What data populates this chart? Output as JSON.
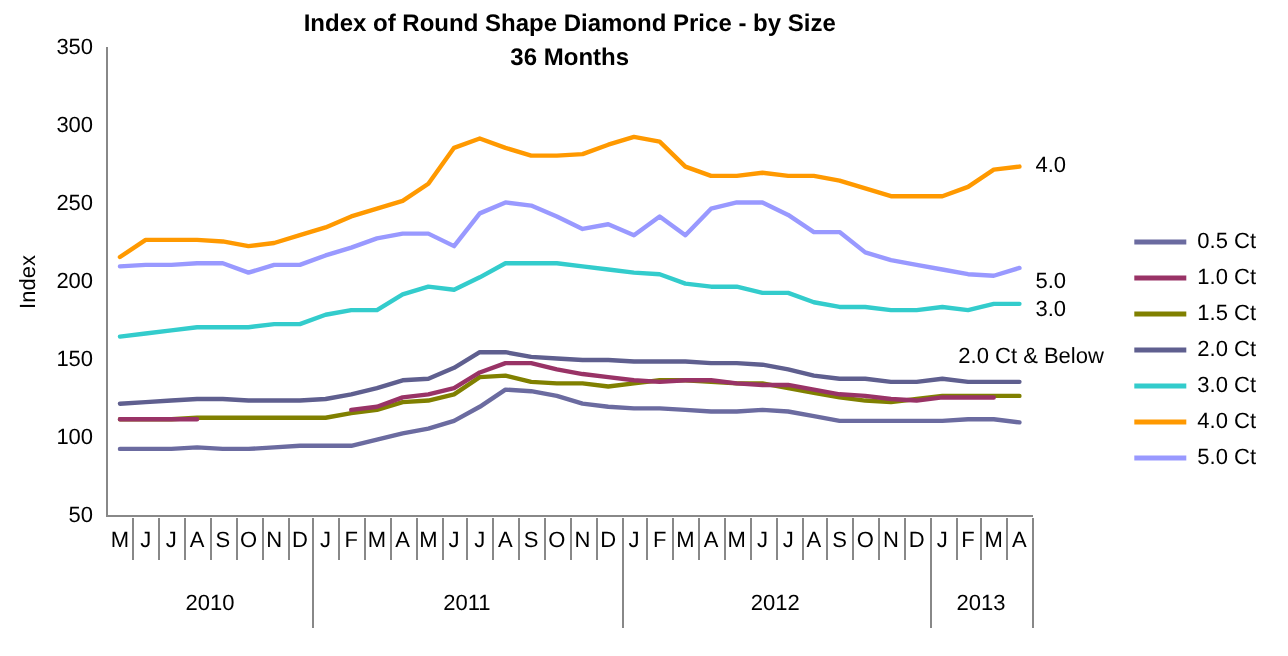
{
  "chart_data": {
    "type": "line",
    "title": "Index of Round Shape Diamond Price - by Size",
    "subtitle": "36 Months",
    "ylabel": "Index",
    "categories": [
      "M",
      "J",
      "J",
      "A",
      "S",
      "O",
      "N",
      "D",
      "J",
      "F",
      "M",
      "A",
      "M",
      "J",
      "J",
      "A",
      "S",
      "O",
      "N",
      "D",
      "J",
      "F",
      "M",
      "A",
      "M",
      "J",
      "J",
      "A",
      "S",
      "O",
      "N",
      "D",
      "J",
      "F",
      "M",
      "A"
    ],
    "ylim": [
      50,
      350
    ],
    "yticks": [
      50,
      100,
      150,
      200,
      250,
      300,
      350
    ],
    "grid": false,
    "legend": "right",
    "marker": "none",
    "line_style": "solid",
    "series": [
      {
        "name": "0.5 Ct",
        "color": "#6b6ba0",
        "values": [
          93,
          93,
          93,
          94,
          93,
          93,
          94,
          95,
          95,
          95,
          99,
          103,
          106,
          111,
          120,
          131,
          130,
          127,
          122,
          120,
          119,
          119,
          118,
          117,
          117,
          118,
          117,
          114,
          111,
          111,
          111,
          111,
          111,
          112,
          112,
          110
        ]
      },
      {
        "name": "1.0 Ct",
        "color": "#993366",
        "values": [
          112,
          112,
          112,
          112,
          null,
          null,
          null,
          null,
          null,
          118,
          120,
          126,
          128,
          132,
          142,
          148,
          148,
          144,
          141,
          139,
          137,
          136,
          137,
          137,
          135,
          134,
          134,
          131,
          128,
          127,
          125,
          124,
          126,
          126,
          126,
          null
        ]
      },
      {
        "name": "1.5 Ct",
        "color": "#808000",
        "values": [
          112,
          112,
          112,
          113,
          113,
          113,
          113,
          113,
          113,
          116,
          118,
          123,
          124,
          128,
          139,
          140,
          136,
          135,
          135,
          133,
          135,
          137,
          137,
          136,
          135,
          135,
          132,
          129,
          126,
          124,
          123,
          125,
          127,
          127,
          127,
          127
        ]
      },
      {
        "name": "2.0 Ct",
        "color": "#5f5f8f",
        "values": [
          122,
          123,
          124,
          125,
          125,
          124,
          124,
          124,
          125,
          128,
          132,
          137,
          138,
          145,
          155,
          155,
          152,
          151,
          150,
          150,
          149,
          149,
          149,
          148,
          148,
          147,
          144,
          140,
          138,
          138,
          136,
          136,
          138,
          136,
          136,
          136
        ]
      },
      {
        "name": "3.0 Ct",
        "color": "#33cccc",
        "values": [
          165,
          167,
          169,
          171,
          171,
          171,
          173,
          173,
          179,
          182,
          182,
          192,
          197,
          195,
          203,
          212,
          212,
          212,
          210,
          208,
          206,
          205,
          199,
          197,
          197,
          193,
          193,
          187,
          184,
          184,
          182,
          182,
          184,
          182,
          186,
          186
        ]
      },
      {
        "name": "4.0 Ct",
        "color": "#ff9900",
        "values": [
          216,
          227,
          227,
          227,
          226,
          223,
          225,
          230,
          235,
          242,
          247,
          252,
          263,
          286,
          292,
          286,
          281,
          281,
          282,
          288,
          293,
          290,
          274,
          268,
          268,
          270,
          268,
          268,
          265,
          260,
          255,
          255,
          255,
          261,
          272,
          274
        ]
      },
      {
        "name": "5.0 Ct",
        "color": "#9999ff",
        "values": [
          210,
          211,
          211,
          212,
          212,
          206,
          211,
          211,
          217,
          222,
          228,
          231,
          231,
          223,
          244,
          251,
          249,
          242,
          234,
          237,
          230,
          242,
          230,
          247,
          251,
          251,
          243,
          232,
          232,
          219,
          214,
          211,
          208,
          205,
          204,
          209
        ]
      }
    ],
    "annotations": [
      "4.0",
      "5.0",
      "3.0",
      "2.0 Ct & Below",
      "2010",
      "2011",
      "2012",
      "2013"
    ]
  }
}
